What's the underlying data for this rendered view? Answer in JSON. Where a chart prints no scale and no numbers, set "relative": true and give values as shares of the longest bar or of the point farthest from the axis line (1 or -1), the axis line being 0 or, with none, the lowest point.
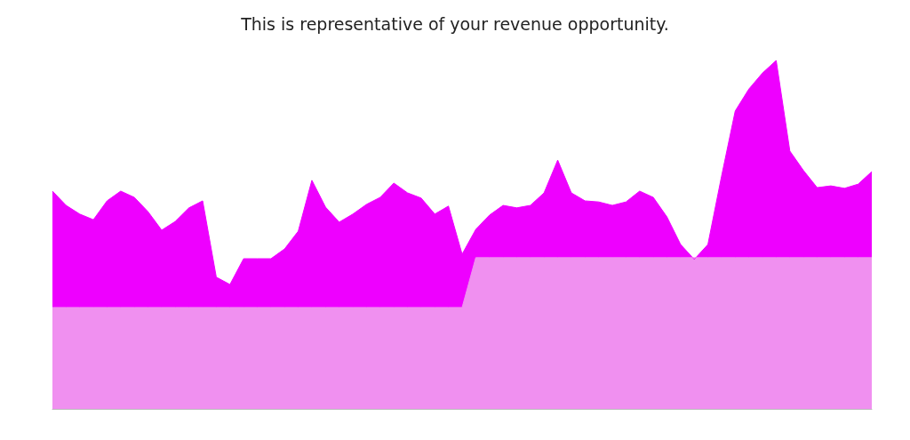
{
  "chart_data": {
    "type": "area",
    "title": "This is representative of your revenue opportunity.",
    "relative": true,
    "categories": [
      null,
      null,
      null,
      null,
      null,
      null,
      null,
      null,
      null,
      null,
      null,
      null,
      null,
      null,
      null,
      null,
      null,
      null,
      null,
      null,
      null,
      null,
      null,
      null,
      null,
      null,
      null,
      null,
      null,
      null,
      null,
      null,
      null,
      null,
      null,
      null,
      null,
      null,
      null,
      null,
      null,
      null,
      null,
      null,
      null,
      null,
      null,
      null,
      null,
      null,
      null,
      null,
      null,
      null,
      null,
      null,
      null,
      null,
      null,
      null,
      null
    ],
    "series": [
      {
        "color": "#ee00ff",
        "values": [
          0.625,
          0.584,
          0.559,
          0.543,
          0.597,
          0.625,
          0.607,
          0.566,
          0.513,
          0.538,
          0.577,
          0.597,
          0.378,
          0.357,
          0.431,
          0.431,
          0.431,
          0.459,
          0.51,
          0.656,
          0.579,
          0.536,
          0.559,
          0.587,
          0.607,
          0.648,
          0.62,
          0.605,
          0.559,
          0.582,
          0.444,
          0.515,
          0.556,
          0.584,
          0.577,
          0.584,
          0.62,
          0.714,
          0.62,
          0.597,
          0.594,
          0.584,
          0.594,
          0.625,
          0.607,
          0.551,
          0.472,
          0.429,
          0.472,
          0.668,
          0.855,
          0.918,
          0.964,
          1,
          0.74,
          0.684,
          0.635,
          0.64,
          0.633,
          0.645,
          0.681
        ]
      },
      {
        "color": "#f090f0",
        "values": [
          0.291,
          0.291,
          0.291,
          0.291,
          0.291,
          0.291,
          0.291,
          0.291,
          0.291,
          0.291,
          0.291,
          0.291,
          0.291,
          0.291,
          0.291,
          0.291,
          0.291,
          0.291,
          0.291,
          0.291,
          0.291,
          0.291,
          0.291,
          0.291,
          0.291,
          0.291,
          0.291,
          0.291,
          0.291,
          0.291,
          0.291,
          0.434,
          0.434,
          0.434,
          0.434,
          0.434,
          0.434,
          0.434,
          0.434,
          0.434,
          0.434,
          0.434,
          0.434,
          0.434,
          0.434,
          0.434,
          0.434,
          0.434,
          0.434,
          0.434,
          0.434,
          0.434,
          0.434,
          0.434,
          0.434,
          0.434,
          0.434,
          0.434,
          0.434,
          0.434,
          0.434
        ]
      }
    ]
  }
}
